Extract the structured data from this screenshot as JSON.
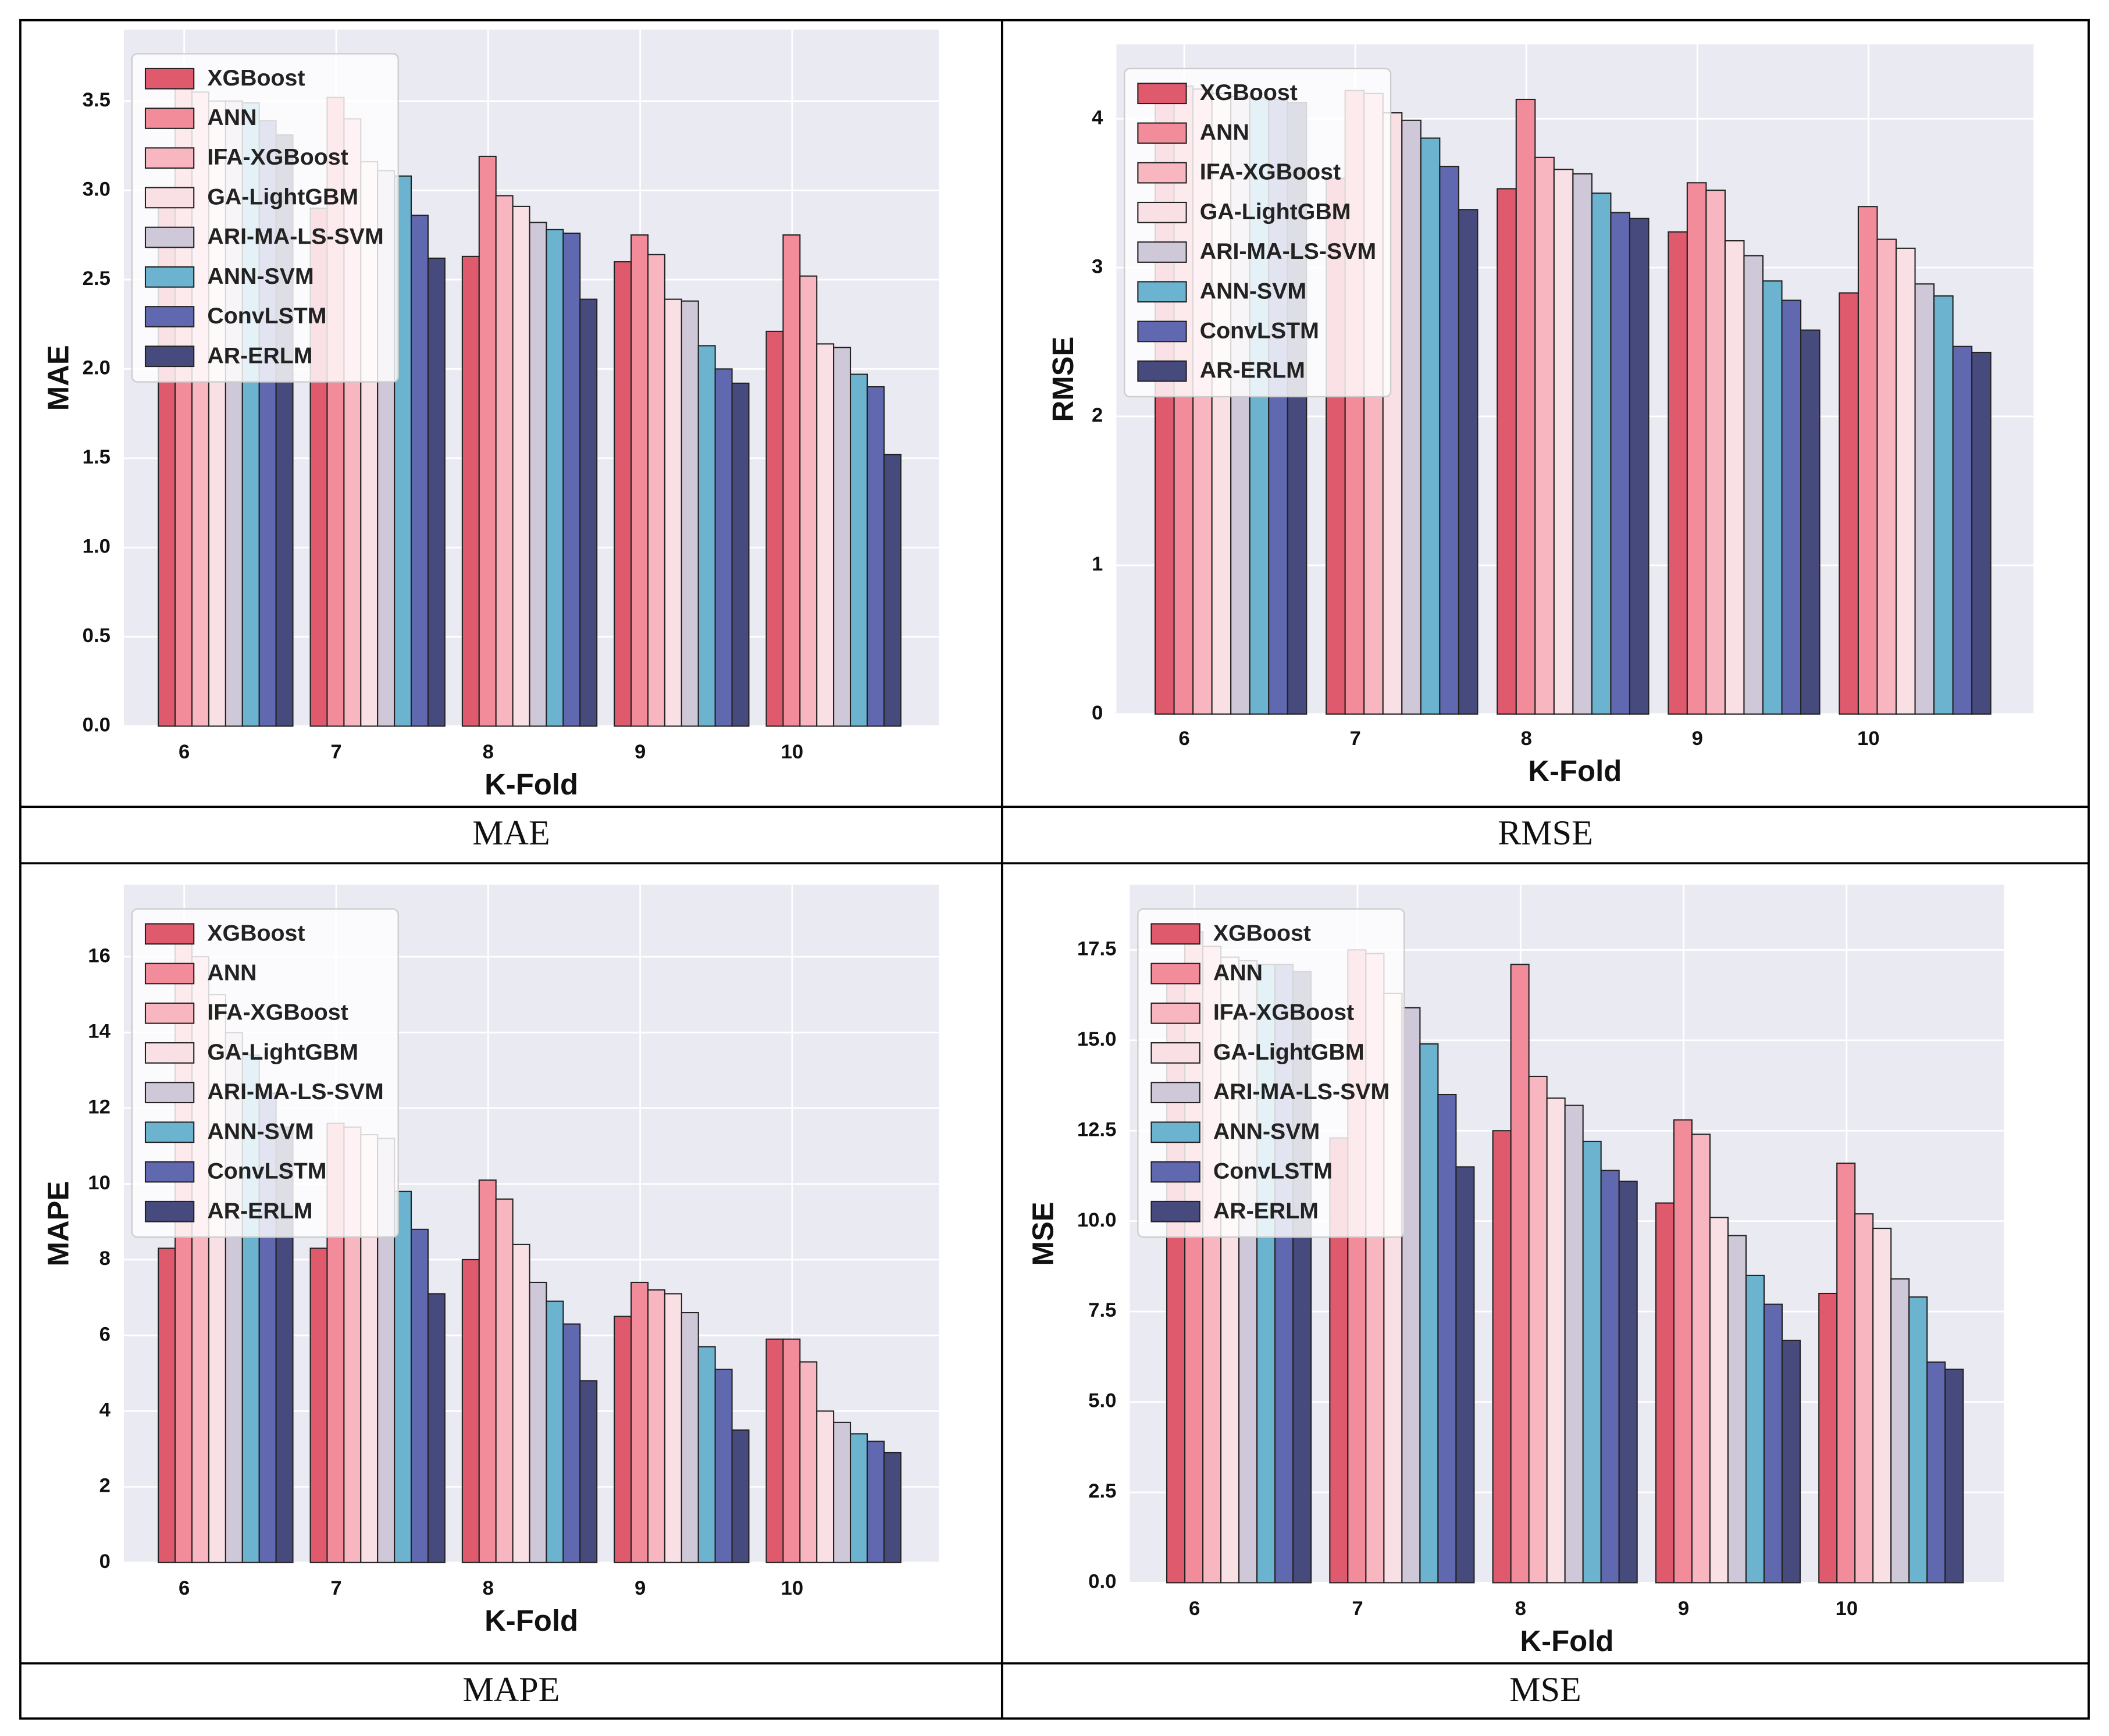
{
  "chart_data": [
    {
      "type": "bar",
      "caption": "MAE",
      "xlabel": "K-Fold",
      "ylabel": "MAE",
      "categories": [
        "6",
        "7",
        "8",
        "9",
        "10"
      ],
      "series": [
        {
          "name": "XGBoost",
          "color": "#e05a6e",
          "values": [
            3.0,
            2.9,
            2.63,
            2.6,
            2.21
          ]
        },
        {
          "name": "ANN",
          "color": "#f28c9a",
          "values": [
            3.65,
            3.52,
            3.19,
            2.75,
            2.75
          ]
        },
        {
          "name": "IFA-XGBoost",
          "color": "#f7b6c0",
          "values": [
            3.55,
            3.4,
            2.97,
            2.64,
            2.52
          ]
        },
        {
          "name": "GA-LightGBM",
          "color": "#f9e0e4",
          "values": [
            3.5,
            3.16,
            2.91,
            2.39,
            2.14
          ]
        },
        {
          "name": "ARI-MA-LS-SVM",
          "color": "#cfc8d8",
          "values": [
            3.5,
            3.11,
            2.82,
            2.38,
            2.12
          ]
        },
        {
          "name": "ANN-SVM",
          "color": "#6bb3cf",
          "values": [
            3.49,
            3.08,
            2.78,
            2.13,
            1.97
          ]
        },
        {
          "name": "ConvLSTM",
          "color": "#6068b0",
          "values": [
            3.39,
            2.86,
            2.76,
            2.0,
            1.9
          ]
        },
        {
          "name": "AR-ERLM",
          "color": "#474a7c",
          "values": [
            3.31,
            2.62,
            2.39,
            1.92,
            1.52
          ]
        }
      ],
      "ylim": [
        0,
        3.9
      ],
      "yticks": [
        {
          "value": 0,
          "label": "0.0"
        },
        0.5,
        {
          "value": 1,
          "label": "1.0"
        },
        1.5,
        {
          "value": 2,
          "label": "2.0"
        },
        2.5,
        {
          "value": 3,
          "label": "3.0"
        },
        3.5
      ],
      "grid": true,
      "legend": "upper left"
    },
    {
      "type": "bar",
      "caption": "RMSE",
      "xlabel": "K-Fold",
      "ylabel": "RMSE",
      "categories": [
        "6",
        "7",
        "8",
        "9",
        "10"
      ],
      "series": [
        {
          "name": "XGBoost",
          "color": "#e05a6e",
          "values": [
            4.12,
            3.6,
            3.53,
            3.24,
            2.83
          ]
        },
        {
          "name": "ANN",
          "color": "#f28c9a",
          "values": [
            4.22,
            4.19,
            4.13,
            3.57,
            3.41
          ]
        },
        {
          "name": "IFA-XGBoost",
          "color": "#f7b6c0",
          "values": [
            4.2,
            4.17,
            3.74,
            3.52,
            3.19
          ]
        },
        {
          "name": "GA-LightGBM",
          "color": "#f9e0e4",
          "values": [
            4.17,
            4.04,
            3.66,
            3.18,
            3.13
          ]
        },
        {
          "name": "ARI-MA-LS-SVM",
          "color": "#cfc8d8",
          "values": [
            4.15,
            3.99,
            3.63,
            3.08,
            2.89
          ]
        },
        {
          "name": "ANN-SVM",
          "color": "#6bb3cf",
          "values": [
            4.14,
            3.87,
            3.5,
            2.91,
            2.81
          ]
        },
        {
          "name": "ConvLSTM",
          "color": "#6068b0",
          "values": [
            4.13,
            3.68,
            3.37,
            2.78,
            2.47
          ]
        },
        {
          "name": "AR-ERLM",
          "color": "#474a7c",
          "values": [
            4.11,
            3.39,
            3.33,
            2.58,
            2.43
          ]
        }
      ],
      "ylim": [
        0,
        4.5
      ],
      "yticks": [
        0,
        1,
        2,
        3,
        4
      ],
      "grid": true,
      "legend": "upper left"
    },
    {
      "type": "bar",
      "caption": "MAPE",
      "xlabel": "K-Fold",
      "ylabel": "MAPE",
      "categories": [
        "6",
        "7",
        "8",
        "9",
        "10"
      ],
      "series": [
        {
          "name": "XGBoost",
          "color": "#e05a6e",
          "values": [
            8.3,
            8.3,
            8.0,
            6.5,
            5.9
          ]
        },
        {
          "name": "ANN",
          "color": "#f28c9a",
          "values": [
            16.8,
            11.6,
            10.1,
            7.4,
            5.9
          ]
        },
        {
          "name": "IFA-XGBoost",
          "color": "#f7b6c0",
          "values": [
            16.0,
            11.5,
            9.6,
            7.2,
            5.3
          ]
        },
        {
          "name": "GA-LightGBM",
          "color": "#f9e0e4",
          "values": [
            15.0,
            11.3,
            8.4,
            7.1,
            4.0
          ]
        },
        {
          "name": "ARI-MA-LS-SVM",
          "color": "#cfc8d8",
          "values": [
            14.0,
            11.2,
            7.4,
            6.6,
            3.7
          ]
        },
        {
          "name": "ANN-SVM",
          "color": "#6bb3cf",
          "values": [
            13.4,
            9.8,
            6.9,
            5.7,
            3.4
          ]
        },
        {
          "name": "ConvLSTM",
          "color": "#6068b0",
          "values": [
            12.4,
            8.8,
            6.3,
            5.1,
            3.2
          ]
        },
        {
          "name": "AR-ERLM",
          "color": "#474a7c",
          "values": [
            11.5,
            7.1,
            4.8,
            3.5,
            2.9
          ]
        }
      ],
      "ylim": [
        0,
        17.9
      ],
      "yticks": [
        0,
        2,
        4,
        6,
        8,
        10,
        12,
        14,
        16
      ],
      "grid": true,
      "legend": "upper left"
    },
    {
      "type": "bar",
      "caption": "MSE",
      "xlabel": "K-Fold",
      "ylabel": "MSE",
      "categories": [
        "6",
        "7",
        "8",
        "9",
        "10"
      ],
      "series": [
        {
          "name": "XGBoost",
          "color": "#e05a6e",
          "values": [
            17.0,
            12.3,
            12.5,
            10.5,
            8.0
          ]
        },
        {
          "name": "ANN",
          "color": "#f28c9a",
          "values": [
            18.0,
            17.5,
            17.1,
            12.8,
            11.6
          ]
        },
        {
          "name": "IFA-XGBoost",
          "color": "#f7b6c0",
          "values": [
            17.6,
            17.4,
            14.0,
            12.4,
            10.2
          ]
        },
        {
          "name": "GA-LightGBM",
          "color": "#f9e0e4",
          "values": [
            17.3,
            16.3,
            13.4,
            10.1,
            9.8
          ]
        },
        {
          "name": "ARI-MA-LS-SVM",
          "color": "#cfc8d8",
          "values": [
            17.2,
            15.9,
            13.2,
            9.6,
            8.4
          ]
        },
        {
          "name": "ANN-SVM",
          "color": "#6bb3cf",
          "values": [
            17.1,
            14.9,
            12.2,
            8.5,
            7.9
          ]
        },
        {
          "name": "ConvLSTM",
          "color": "#6068b0",
          "values": [
            17.1,
            13.5,
            11.4,
            7.7,
            6.1
          ]
        },
        {
          "name": "AR-ERLM",
          "color": "#474a7c",
          "values": [
            16.9,
            11.5,
            11.1,
            6.7,
            5.9
          ]
        }
      ],
      "ylim": [
        0,
        19.3
      ],
      "yticks": [
        {
          "value": 0,
          "label": "0.0"
        },
        2.5,
        {
          "value": 5,
          "label": "5.0"
        },
        7.5,
        {
          "value": 10,
          "label": "10.0"
        },
        12.5,
        {
          "value": 15,
          "label": "15.0"
        },
        17.5
      ],
      "grid": true,
      "legend": "upper left"
    }
  ]
}
